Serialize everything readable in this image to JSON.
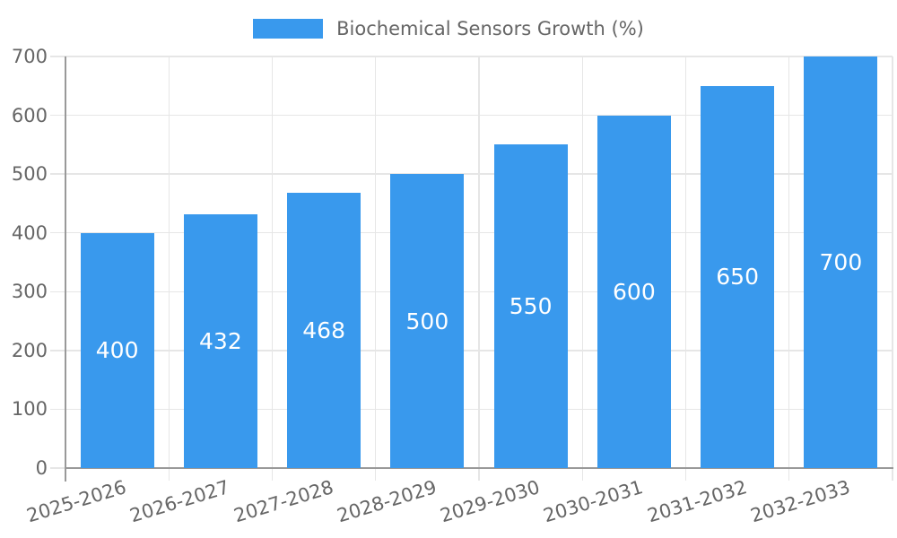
{
  "legend": {
    "label": "Biochemical Sensors Growth (%)"
  },
  "chart_data": {
    "type": "bar",
    "title": "Biochemical Sensors Growth (%)",
    "categories": [
      "2025-2026",
      "2026-2027",
      "2027-2028",
      "2028-2029",
      "2029-2030",
      "2030-2031",
      "2031-2032",
      "2032-2033"
    ],
    "values": [
      400,
      432,
      468,
      500,
      550,
      600,
      650,
      700
    ],
    "series": [
      {
        "name": "Biochemical Sensors Growth (%)",
        "values": [
          400,
          432,
          468,
          500,
          550,
          600,
          650,
          700
        ]
      }
    ],
    "xlabel": "",
    "ylabel": "",
    "ylim": [
      0,
      700
    ],
    "y_ticks": [
      0,
      100,
      200,
      300,
      400,
      500,
      600,
      700
    ],
    "grid": true,
    "legend_position": "top-center",
    "bar_value_labels_shown": true,
    "colors": {
      "bar": "#3999ed",
      "bar_label": "#ffffff",
      "axis_text": "#666666",
      "grid_line": "#e6e6e6",
      "axis_line": "#999999",
      "background": "#ffffff"
    }
  }
}
